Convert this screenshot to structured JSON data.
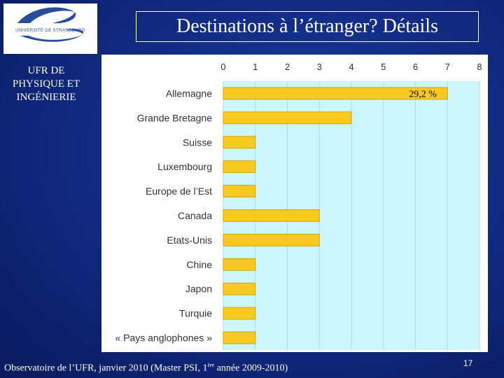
{
  "logo": {
    "text": "UNIVERSITÉ DE STRASBOURG"
  },
  "slide": {
    "title": "Destinations à l’étranger? Détails",
    "ufr_line1": "UFR DE",
    "ufr_line2": "PHYSIQUE ET",
    "ufr_line3": "INGÉNIERIE",
    "footer_before_sup": "Observatoire de l’UFR, janvier 2010 (Master PSI, 1",
    "footer_sup": "ère",
    "footer_after_sup": " année 2009-2010)",
    "page_number": "17"
  },
  "chart_data": {
    "type": "bar",
    "orientation": "horizontal",
    "categories": [
      "Allemagne",
      "Grande Bretagne",
      "Suisse",
      "Luxembourg",
      "Europe de l’Est",
      "Canada",
      "Etats-Unis",
      "Chine",
      "Japon",
      "Turquie",
      "« Pays anglophones »"
    ],
    "values": [
      7,
      4,
      1,
      1,
      1,
      3,
      3,
      1,
      1,
      1,
      1
    ],
    "xlim": [
      0,
      8
    ],
    "xticks": [
      "0",
      "1",
      "2",
      "3",
      "4",
      "5",
      "6",
      "7",
      "8"
    ],
    "x_axis_position": "top",
    "grid": true,
    "annotations": [
      {
        "category": "Allemagne",
        "text": "29,2 %"
      }
    ],
    "colors": {
      "bar": "#f8c91e",
      "bar_stroke": "#c89a00",
      "plot_bg": "#ccf6fb",
      "grid": "#a9dde6",
      "text": "#333333"
    }
  }
}
